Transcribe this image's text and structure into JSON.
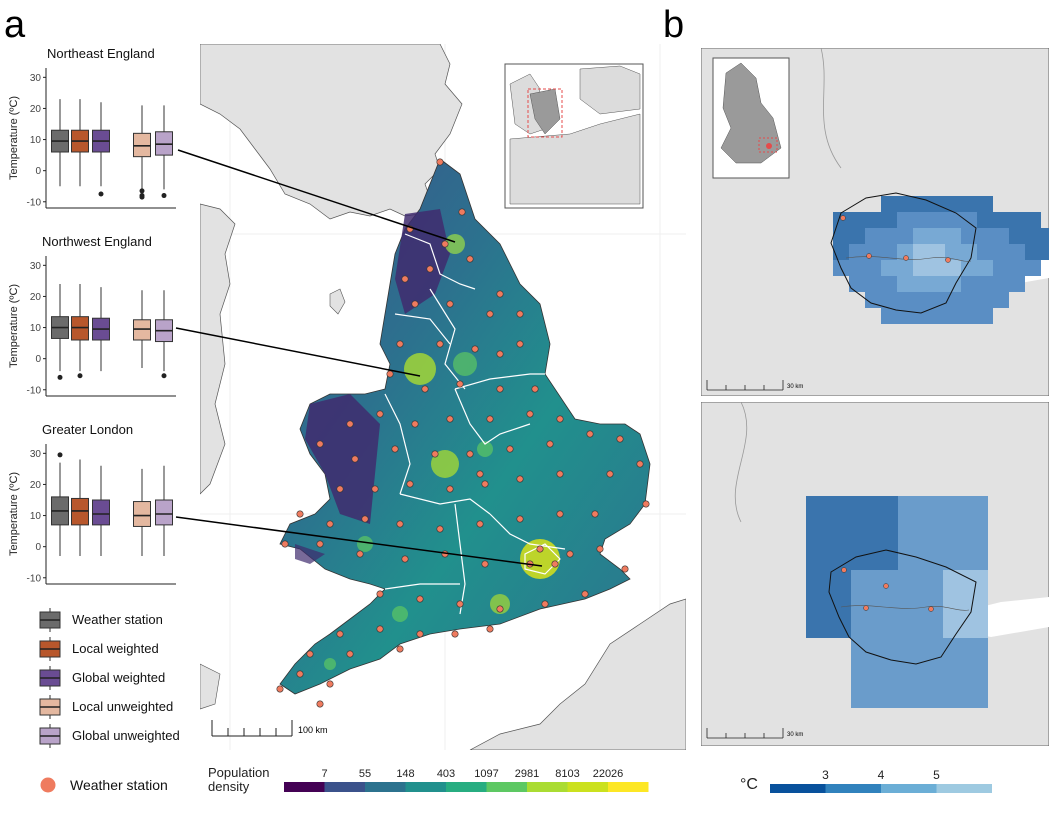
{
  "panel_labels": {
    "a": "a",
    "b": "b"
  },
  "colors": {
    "weather_station": "#6b6b6b",
    "local_weighted": "#b8572c",
    "global_weighted": "#6a4c93",
    "local_unweighted": "#e4b8a0",
    "global_unweighted": "#b9a3c9",
    "station_point": "#ef7b5f",
    "land": "#e2e2e2",
    "sea": "#ffffff",
    "boundary": "#555555"
  },
  "chart_data": [
    {
      "type": "boxplot",
      "title": "Northeast England",
      "ylabel": "Temperature (ºC)",
      "ylim": [
        -12,
        33
      ],
      "yticks": [
        -10,
        0,
        10,
        20,
        30
      ],
      "series": [
        {
          "name": "Weather station",
          "min": -5,
          "q1": 6,
          "median": 9.5,
          "q3": 13,
          "max": 23,
          "outliers": []
        },
        {
          "name": "Local weighted",
          "min": -5,
          "q1": 6,
          "median": 9.5,
          "q3": 13,
          "max": 23,
          "outliers": []
        },
        {
          "name": "Global weighted",
          "min": -5,
          "q1": 6,
          "median": 9.5,
          "q3": 13,
          "max": 22,
          "outliers": [
            -7.5
          ]
        },
        {
          "name": "Local unweighted",
          "min": -6,
          "q1": 4.5,
          "median": 8,
          "q3": 12,
          "max": 21,
          "outliers": [
            -6.5,
            -8,
            -8.5
          ]
        },
        {
          "name": "Global unweighted",
          "min": -6,
          "q1": 5,
          "median": 8.5,
          "q3": 12.5,
          "max": 21,
          "outliers": [
            -8
          ]
        }
      ]
    },
    {
      "type": "boxplot",
      "title": "Northwest England",
      "ylabel": "Temperature (ºC)",
      "ylim": [
        -12,
        33
      ],
      "yticks": [
        -10,
        0,
        10,
        20,
        30
      ],
      "series": [
        {
          "name": "Weather station",
          "min": -4,
          "q1": 6.5,
          "median": 10,
          "q3": 13.5,
          "max": 24,
          "outliers": [
            -6
          ]
        },
        {
          "name": "Local weighted",
          "min": -4,
          "q1": 6,
          "median": 10,
          "q3": 13.5,
          "max": 24,
          "outliers": [
            -5.5
          ]
        },
        {
          "name": "Global weighted",
          "min": -4,
          "q1": 6,
          "median": 9.5,
          "q3": 13,
          "max": 23,
          "outliers": []
        },
        {
          "name": "Local unweighted",
          "min": -3,
          "q1": 6,
          "median": 9.5,
          "q3": 12.5,
          "max": 22,
          "outliers": []
        },
        {
          "name": "Global unweighted",
          "min": -4,
          "q1": 5.5,
          "median": 9,
          "q3": 12.5,
          "max": 22,
          "outliers": [
            -5.5
          ]
        }
      ]
    },
    {
      "type": "boxplot",
      "title": "Greater London",
      "ylabel": "Temperature (ºC)",
      "ylim": [
        -12,
        33
      ],
      "yticks": [
        -10,
        0,
        10,
        20,
        30
      ],
      "series": [
        {
          "name": "Weather station",
          "min": -3,
          "q1": 7,
          "median": 11.5,
          "q3": 16,
          "max": 27,
          "outliers": [
            29.5
          ]
        },
        {
          "name": "Local weighted",
          "min": -3,
          "q1": 7,
          "median": 11.5,
          "q3": 15.5,
          "max": 28,
          "outliers": []
        },
        {
          "name": "Global weighted",
          "min": -3,
          "q1": 7,
          "median": 10.5,
          "q3": 15,
          "max": 26,
          "outliers": []
        },
        {
          "name": "Local unweighted",
          "min": -3,
          "q1": 6.5,
          "median": 10,
          "q3": 14.5,
          "max": 25,
          "outliers": []
        },
        {
          "name": "Global unweighted",
          "min": -3,
          "q1": 7,
          "median": 10.5,
          "q3": 15,
          "max": 26,
          "outliers": []
        }
      ]
    }
  ],
  "legend": {
    "items": [
      {
        "label": "Weather station",
        "color": "#6b6b6b"
      },
      {
        "label": "Local weighted",
        "color": "#b8572c"
      },
      {
        "label": "Global weighted",
        "color": "#6a4c93"
      },
      {
        "label": "Local unweighted",
        "color": "#e4b8a0"
      },
      {
        "label": "Global unweighted",
        "color": "#b9a3c9"
      }
    ],
    "point_label": "Weather station"
  },
  "map_a": {
    "scale_label": "100 km"
  },
  "population_scale": {
    "title_line1": "Population",
    "title_line2": "density",
    "labels": [
      "7",
      "55",
      "148",
      "403",
      "1097",
      "2981",
      "8103",
      "22026"
    ],
    "colors": [
      "#440154",
      "#3b528b",
      "#2c728e",
      "#21908d",
      "#27ad81",
      "#5dc863",
      "#aadc32",
      "#cbe11e",
      "#fde725"
    ]
  },
  "map_b": {
    "scale_label_top": "30 km",
    "scale_label_bottom": "30 km"
  },
  "temp_scale": {
    "title": "°C",
    "labels": [
      "3",
      "4",
      "5"
    ],
    "colors": [
      "#08519c",
      "#3182bd",
      "#6baed6",
      "#9ecae1"
    ]
  }
}
